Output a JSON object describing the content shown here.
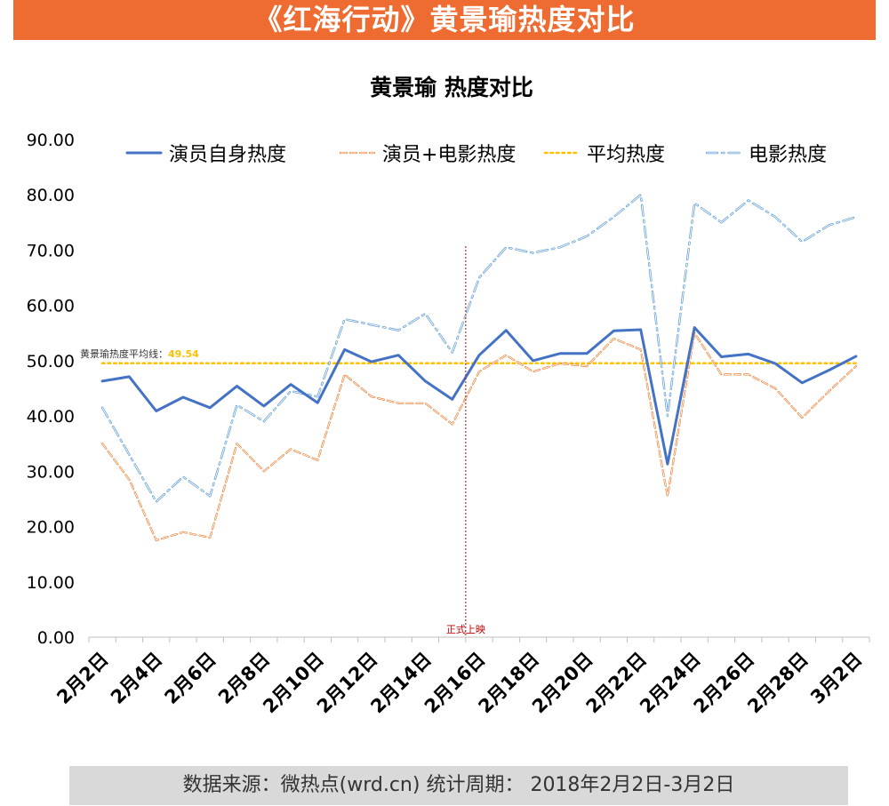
{
  "banner": {
    "title": "《红海行动》黄景瑜热度对比"
  },
  "footer": {
    "text": "数据来源：微热点(wrd.cn) 统计周期： 2018年2月2日-3月2日"
  },
  "colors": {
    "actor": "#4472c4",
    "combined": "#ed7d31",
    "average": "#ffc000",
    "movie": "#5b9bd5",
    "release": "#c00000",
    "banner": "#ee6c32"
  },
  "chart_data": {
    "type": "line",
    "title": "黄景瑜 热度对比",
    "xlabel": "",
    "ylabel": "",
    "ylim": [
      0,
      90
    ],
    "yticks": [
      "0.00",
      "10.00",
      "20.00",
      "30.00",
      "40.00",
      "50.00",
      "60.00",
      "70.00",
      "80.00",
      "90.00"
    ],
    "categories": [
      "2月2日",
      "2月3日",
      "2月4日",
      "2月5日",
      "2月6日",
      "2月7日",
      "2月8日",
      "2月9日",
      "2月10日",
      "2月11日",
      "2月12日",
      "2月13日",
      "2月14日",
      "2月15日",
      "2月16日",
      "2月17日",
      "2月18日",
      "2月19日",
      "2月20日",
      "2月21日",
      "2月22日",
      "2月23日",
      "2月24日",
      "2月25日",
      "2月26日",
      "2月27日",
      "2月28日",
      "3月1日",
      "3月2日"
    ],
    "xtick_labels": [
      "2月2日",
      "",
      "2月4日",
      "",
      "2月6日",
      "",
      "2月8日",
      "",
      "2月10日",
      "",
      "2月12日",
      "",
      "2月14日",
      "",
      "2月16日",
      "",
      "2月18日",
      "",
      "2月20日",
      "",
      "2月22日",
      "",
      "2月24日",
      "",
      "2月26日",
      "",
      "2月28日",
      "",
      "3月2日"
    ],
    "series": [
      {
        "name": "演员自身热度",
        "style": "solid",
        "values": [
          46.3,
          47.1,
          40.9,
          43.4,
          41.5,
          45.4,
          41.8,
          45.7,
          42.4,
          52.0,
          49.8,
          51.0,
          46.3,
          43.0,
          51.0,
          55.5,
          50.0,
          51.3,
          51.3,
          55.4,
          55.6,
          31.3,
          56.0,
          50.7,
          51.2,
          49.5,
          46.0,
          48.3,
          50.8
        ]
      },
      {
        "name": "演员+电影热度",
        "style": "dashed",
        "values": [
          35.0,
          28.5,
          17.5,
          19.0,
          18.0,
          35.0,
          30.0,
          34.0,
          32.0,
          47.5,
          43.5,
          42.3,
          42.3,
          38.5,
          48.0,
          51.0,
          48.0,
          49.5,
          49.0,
          54.0,
          52.0,
          25.5,
          55.0,
          47.5,
          47.5,
          45.0,
          39.7,
          44.5,
          49.0
        ]
      },
      {
        "name": "平均热度",
        "style": "dotted",
        "values": [
          49.54,
          49.54,
          49.54,
          49.54,
          49.54,
          49.54,
          49.54,
          49.54,
          49.54,
          49.54,
          49.54,
          49.54,
          49.54,
          49.54,
          49.54,
          49.54,
          49.54,
          49.54,
          49.54,
          49.54,
          49.54,
          49.54,
          49.54,
          49.54,
          49.54,
          49.54,
          49.54,
          49.54,
          49.54
        ]
      },
      {
        "name": "电影热度",
        "style": "dashdot",
        "values": [
          41.5,
          33.0,
          24.5,
          29.0,
          25.5,
          42.0,
          39.0,
          44.5,
          43.5,
          57.5,
          56.5,
          55.5,
          58.5,
          51.5,
          65.0,
          70.5,
          69.5,
          70.5,
          72.5,
          76.0,
          80.0,
          40.0,
          78.5,
          75.0,
          79.0,
          76.0,
          71.5,
          74.5,
          76.0
        ]
      }
    ],
    "annotations": [
      {
        "id": "avg-label",
        "prefix": "黄景瑜热度平均线：",
        "value": "49.54"
      },
      {
        "id": "release",
        "text": "正式上映",
        "after_category": "2月15日"
      }
    ],
    "legend": "top"
  }
}
